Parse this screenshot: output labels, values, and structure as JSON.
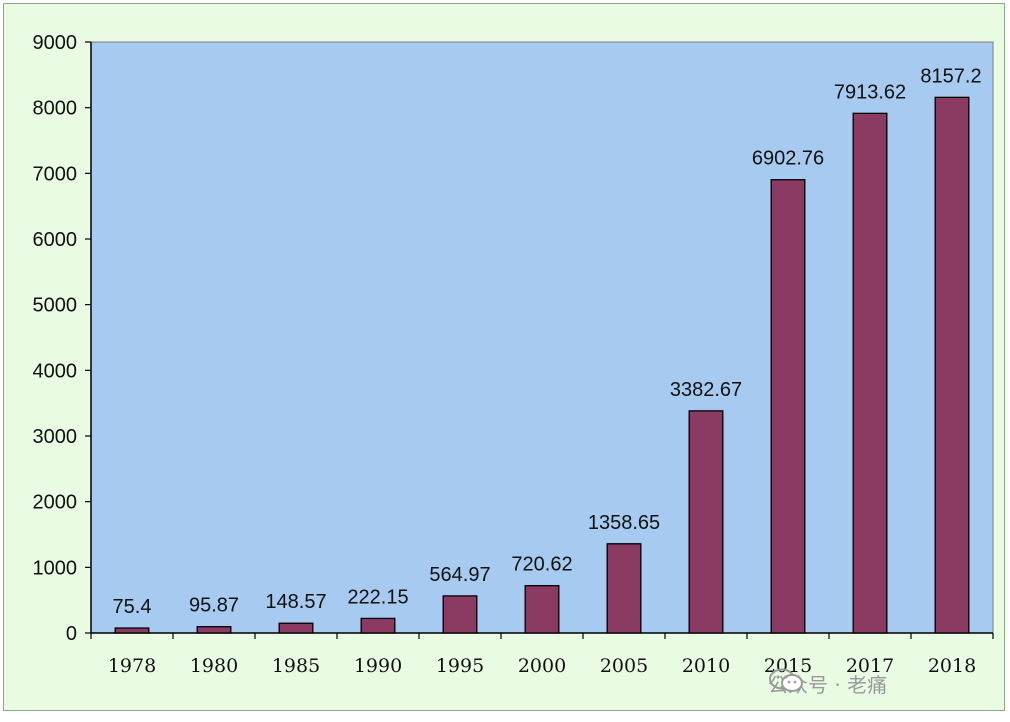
{
  "chart_data": {
    "type": "bar",
    "title": "",
    "xlabel": "",
    "ylabel": "",
    "categories": [
      "1978",
      "1980",
      "1985",
      "1990",
      "1995",
      "2000",
      "2005",
      "2010",
      "2015",
      "2017",
      "2018"
    ],
    "values": [
      75.4,
      95.87,
      148.57,
      222.15,
      564.97,
      720.62,
      1358.65,
      3382.67,
      6902.76,
      7913.62,
      8157.2
    ],
    "data_labels": [
      "75.4",
      "95.87",
      "148.57",
      "222.15",
      "564.97",
      "720.62",
      "1358.65",
      "3382.67",
      "6902.76",
      "7913.62",
      "8157.2"
    ],
    "ylim": [
      0,
      9000
    ],
    "yticks": [
      "0",
      "1000",
      "2000",
      "3000",
      "4000",
      "5000",
      "6000",
      "7000",
      "8000",
      "9000"
    ],
    "grid": false,
    "legend": "none",
    "colors": {
      "bar": "#8b3a62",
      "plot_background": "#a6caf0",
      "frame_background": "#eafbe4"
    }
  },
  "watermark": {
    "icon": "wechat-icon",
    "text": "公众号 · 老痛"
  }
}
